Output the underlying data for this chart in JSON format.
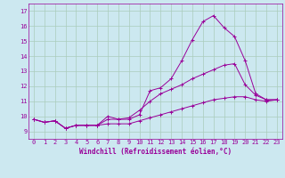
{
  "xlabel": "Windchill (Refroidissement éolien,°C)",
  "background_color": "#cce8f0",
  "grid_color": "#aaccbb",
  "line_color": "#990099",
  "xlim": [
    -0.5,
    23.5
  ],
  "ylim": [
    8.5,
    17.5
  ],
  "xticks": [
    0,
    1,
    2,
    3,
    4,
    5,
    6,
    7,
    8,
    9,
    10,
    11,
    12,
    13,
    14,
    15,
    16,
    17,
    18,
    19,
    20,
    21,
    22,
    23
  ],
  "yticks": [
    9,
    10,
    11,
    12,
    13,
    14,
    15,
    16,
    17
  ],
  "series": [
    [
      9.8,
      9.6,
      9.7,
      9.2,
      9.4,
      9.4,
      9.4,
      10.0,
      9.8,
      9.8,
      10.1,
      11.7,
      11.9,
      12.5,
      13.7,
      15.1,
      16.3,
      16.7,
      15.9,
      15.3,
      13.7,
      11.5,
      11.1,
      11.1
    ],
    [
      9.8,
      9.6,
      9.7,
      9.2,
      9.4,
      9.4,
      9.4,
      9.8,
      9.8,
      9.9,
      10.4,
      11.0,
      11.5,
      11.8,
      12.1,
      12.5,
      12.8,
      13.1,
      13.4,
      13.5,
      12.1,
      11.4,
      11.1,
      11.1
    ],
    [
      9.8,
      9.6,
      9.7,
      9.2,
      9.4,
      9.4,
      9.4,
      9.5,
      9.5,
      9.5,
      9.7,
      9.9,
      10.1,
      10.3,
      10.5,
      10.7,
      10.9,
      11.1,
      11.2,
      11.3,
      11.3,
      11.1,
      11.0,
      11.1
    ]
  ],
  "tick_fontsize": 5.0,
  "xlabel_fontsize": 5.5
}
